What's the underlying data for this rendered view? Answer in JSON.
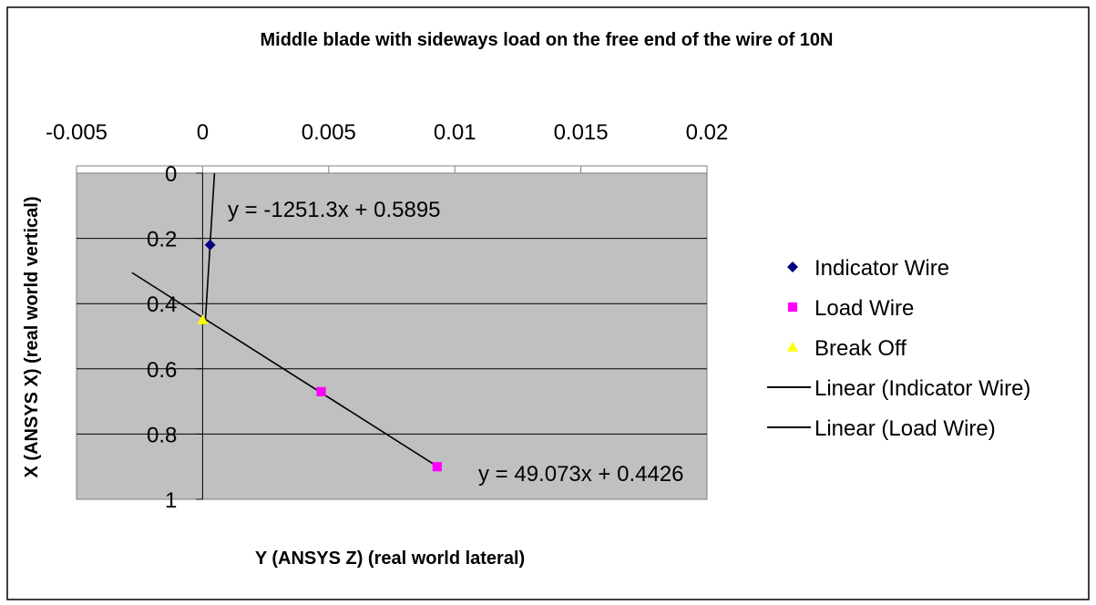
{
  "chart_data": {
    "type": "scatter",
    "title": "Middle blade with sideways load on the free end of the wire of 10N",
    "xlabel": "Y (ANSYS Z) (real world lateral)",
    "ylabel": "X (ANSYS X) (real world vertical)",
    "xlim": [
      -0.005,
      0.02
    ],
    "ylim": [
      0,
      1
    ],
    "y_reversed": true,
    "x_axis_position": "top",
    "x_ticks": [
      "-0.005",
      "0",
      "0.005",
      "0.01",
      "0.015",
      "0.02"
    ],
    "y_ticks": [
      "0",
      "0.2",
      "0.4",
      "0.6",
      "0.8",
      "1"
    ],
    "x_tick_values": [
      -0.005,
      0,
      0.005,
      0.01,
      0.015,
      0.02
    ],
    "y_tick_values": [
      0,
      0.2,
      0.4,
      0.6,
      0.8,
      1
    ],
    "plot_background": "#c0c0c0",
    "grid": "horizontal",
    "legend_position": "right",
    "series": [
      {
        "name": "Indicator Wire",
        "marker": "diamond",
        "color": "#000080",
        "points": [
          [
            0.0003,
            0.22
          ]
        ]
      },
      {
        "name": "Load Wire",
        "marker": "square",
        "color": "#ff00ff",
        "points": [
          [
            0.0047,
            0.67
          ],
          [
            0.0093,
            0.9
          ]
        ]
      },
      {
        "name": "Break Off",
        "marker": "triangle",
        "color": "#ffff00",
        "points": [
          [
            0.0,
            0.45
          ]
        ]
      }
    ],
    "trendlines": [
      {
        "name": "Linear (Indicator Wire)",
        "color": "#000000",
        "slope": -1251.3,
        "intercept": 0.5895,
        "equation": "y = -1251.3x + 0.5895",
        "x_range": [
          0.0001,
          0.000471
        ]
      },
      {
        "name": "Linear (Load Wire)",
        "color": "#000000",
        "slope": 49.073,
        "intercept": 0.4426,
        "equation": "y = 49.073x + 0.4426",
        "x_range": [
          -0.0028,
          0.0093
        ]
      }
    ]
  }
}
